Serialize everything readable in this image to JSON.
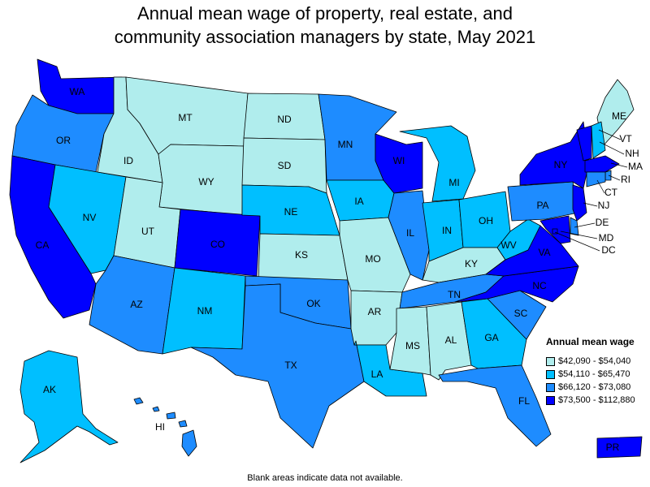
{
  "title_line1": "Annual mean wage of property, real estate, and",
  "title_line2": "community association managers by state, May 2021",
  "legend": {
    "title": "Annual mean wage",
    "bins": [
      {
        "label": "$42,090 - $54,040",
        "color": "#b0eded"
      },
      {
        "label": "$54,110 - $65,470",
        "color": "#00bfff"
      },
      {
        "label": "$66,120 - $73,080",
        "color": "#1e8cff"
      },
      {
        "label": "$73,500 - $112,880",
        "color": "#0000ff"
      }
    ]
  },
  "footnote": "Blank areas indicate data not available.",
  "states": [
    {
      "abbr": "WA",
      "bin": 3
    },
    {
      "abbr": "OR",
      "bin": 2
    },
    {
      "abbr": "CA",
      "bin": 3
    },
    {
      "abbr": "NV",
      "bin": 1
    },
    {
      "abbr": "ID",
      "bin": 0
    },
    {
      "abbr": "MT",
      "bin": 0
    },
    {
      "abbr": "WY",
      "bin": 0
    },
    {
      "abbr": "UT",
      "bin": 0
    },
    {
      "abbr": "CO",
      "bin": 3
    },
    {
      "abbr": "AZ",
      "bin": 2
    },
    {
      "abbr": "NM",
      "bin": 1
    },
    {
      "abbr": "ND",
      "bin": 0
    },
    {
      "abbr": "SD",
      "bin": 0
    },
    {
      "abbr": "NE",
      "bin": 1
    },
    {
      "abbr": "KS",
      "bin": 0
    },
    {
      "abbr": "OK",
      "bin": 2
    },
    {
      "abbr": "TX",
      "bin": 2
    },
    {
      "abbr": "MN",
      "bin": 2
    },
    {
      "abbr": "IA",
      "bin": 1
    },
    {
      "abbr": "MO",
      "bin": 0
    },
    {
      "abbr": "AR",
      "bin": 0
    },
    {
      "abbr": "LA",
      "bin": 1
    },
    {
      "abbr": "WI",
      "bin": 3
    },
    {
      "abbr": "IL",
      "bin": 2
    },
    {
      "abbr": "MI",
      "bin": 1
    },
    {
      "abbr": "IN",
      "bin": 1
    },
    {
      "abbr": "OH",
      "bin": 1
    },
    {
      "abbr": "KY",
      "bin": 0
    },
    {
      "abbr": "TN",
      "bin": 2
    },
    {
      "abbr": "MS",
      "bin": 0
    },
    {
      "abbr": "AL",
      "bin": 0
    },
    {
      "abbr": "GA",
      "bin": 1
    },
    {
      "abbr": "FL",
      "bin": 2
    },
    {
      "abbr": "SC",
      "bin": 2
    },
    {
      "abbr": "NC",
      "bin": 3
    },
    {
      "abbr": "VA",
      "bin": 3
    },
    {
      "abbr": "WV",
      "bin": 1
    },
    {
      "abbr": "PA",
      "bin": 2
    },
    {
      "abbr": "NY",
      "bin": 3
    },
    {
      "abbr": "ME",
      "bin": 0
    },
    {
      "abbr": "VT",
      "bin": 3
    },
    {
      "abbr": "NH",
      "bin": 1
    },
    {
      "abbr": "MA",
      "bin": 3
    },
    {
      "abbr": "RI",
      "bin": 2
    },
    {
      "abbr": "CT",
      "bin": 2
    },
    {
      "abbr": "NJ",
      "bin": 3
    },
    {
      "abbr": "DE",
      "bin": 2
    },
    {
      "abbr": "MD",
      "bin": 3
    },
    {
      "abbr": "DC",
      "bin": 3
    },
    {
      "abbr": "AK",
      "bin": 1
    },
    {
      "abbr": "HI",
      "bin": 2
    },
    {
      "abbr": "PR",
      "bin": 3
    }
  ]
}
